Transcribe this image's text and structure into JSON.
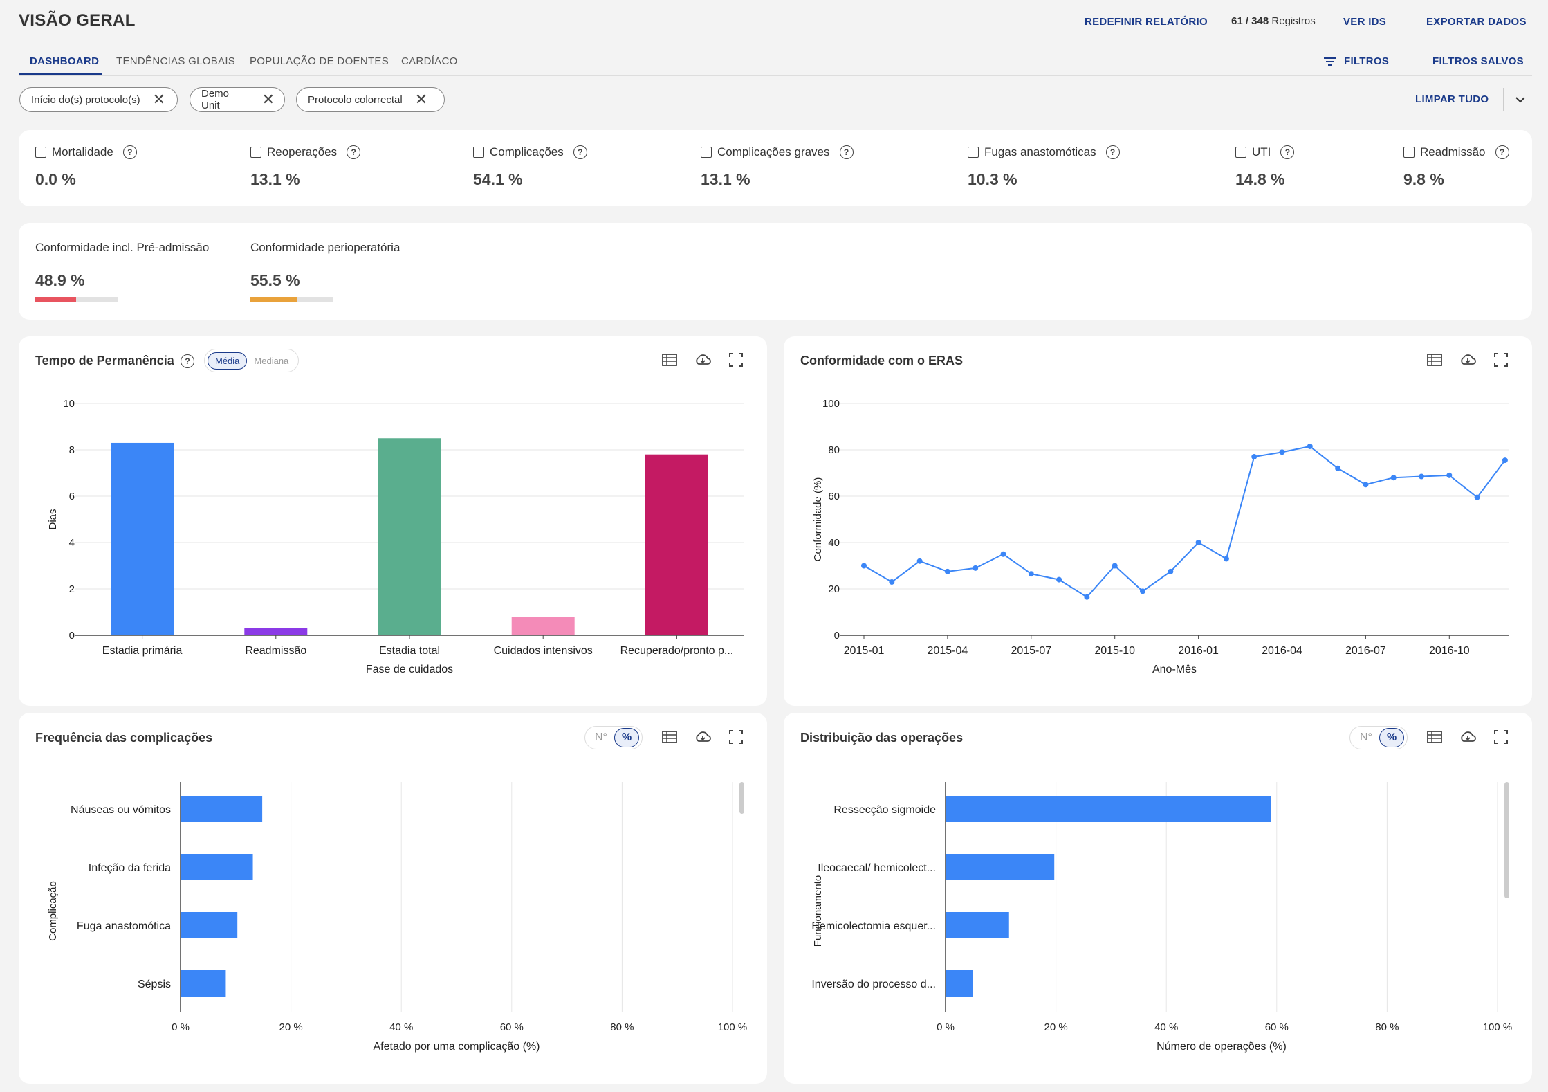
{
  "header": {
    "title": "VISÃO GERAL",
    "reset_report": "REDEFINIR RELATÓRIO",
    "records_count": "61 / 348",
    "records_label": "Registros",
    "view_ids": "VER IDS",
    "export": "EXPORTAR DADOS"
  },
  "tabs": [
    {
      "label": "DASHBOARD"
    },
    {
      "label": "TENDÊNCIAS GLOBAIS"
    },
    {
      "label": "POPULAÇÃO DE DOENTES"
    },
    {
      "label": "CARDÍACO"
    }
  ],
  "toolbar": {
    "filters": "FILTROS",
    "saved_filters": "FILTROS SALVOS",
    "clear_all": "LIMPAR TUDO"
  },
  "chips": [
    {
      "label": "Início do(s) protocolo(s)"
    },
    {
      "label": "Demo Unit"
    },
    {
      "label": "Protocolo colorrectal"
    }
  ],
  "kpis": [
    {
      "label": "Mortalidade",
      "value": "0.0 %"
    },
    {
      "label": "Reoperações",
      "value": "13.1 %"
    },
    {
      "label": "Complicações",
      "value": "54.1 %"
    },
    {
      "label": "Complicações graves",
      "value": "13.1 %"
    },
    {
      "label": "Fugas anastomóticas",
      "value": "10.3 %"
    },
    {
      "label": "UTI",
      "value": "14.8 %"
    },
    {
      "label": "Readmissão",
      "value": "9.8 %"
    }
  ],
  "compliance": [
    {
      "label": "Conformidade incl. Pré-admissão",
      "value": "48.9 %",
      "fraction": 0.489,
      "color": "#e8545f"
    },
    {
      "label": "Conformidade perioperatória",
      "value": "55.5 %",
      "fraction": 0.555,
      "color": "#e9a23b"
    }
  ],
  "panels": {
    "los": {
      "title": "Tempo de Permanência",
      "toggle_a": "Média",
      "toggle_b": "Mediana"
    },
    "eras": {
      "title": "Conformidade com o ERAS"
    },
    "freq": {
      "title": "Frequência das complicações",
      "toggle_a": "N°",
      "toggle_b": "%"
    },
    "ops": {
      "title": "Distribuição das operações",
      "toggle_a": "N°",
      "toggle_b": "%"
    }
  },
  "chart_data": [
    {
      "id": "los",
      "type": "bar",
      "title": "Tempo de Permanência",
      "categories": [
        "Estadia primária",
        "Readmissão",
        "Estadia total",
        "Cuidados intensivos",
        "Recuperado/pronto p..."
      ],
      "values": [
        8.3,
        0.3,
        8.5,
        0.8,
        7.8
      ],
      "colors": [
        "#3b86f7",
        "#8b3ae6",
        "#5aae8e",
        "#f48bb8",
        "#c41a63"
      ],
      "xlabel": "Fase de cuidados",
      "ylabel": "Dias",
      "ylim": [
        0,
        10
      ],
      "yticks": [
        "0",
        "2",
        "4",
        "6",
        "8",
        "10"
      ]
    },
    {
      "id": "eras",
      "type": "line",
      "title": "Conformidade com o ERAS",
      "x": [
        "2015-01",
        "2015-02",
        "2015-03",
        "2015-04",
        "2015-05",
        "2015-06",
        "2015-07",
        "2015-08",
        "2015-09",
        "2015-10",
        "2015-11",
        "2015-12",
        "2016-01",
        "2016-02",
        "2016-03",
        "2016-04",
        "2016-05",
        "2016-06",
        "2016-07",
        "2016-08",
        "2016-09",
        "2016-10",
        "2016-11",
        "2016-12"
      ],
      "values": [
        30,
        23,
        32,
        27.5,
        29,
        35,
        26.5,
        24,
        16.5,
        30,
        19,
        27.5,
        40,
        33,
        77,
        79,
        81.5,
        72,
        65,
        68,
        68.5,
        69,
        59.5,
        75.5
      ],
      "xticks": [
        "2015-01",
        "2015-04",
        "2015-07",
        "2015-10",
        "2016-01",
        "2016-04",
        "2016-07",
        "2016-10"
      ],
      "xlabel": "Ano-Mês",
      "ylabel": "Conformidade (%)",
      "ylim": [
        0,
        100
      ],
      "yticks": [
        "0",
        "20",
        "40",
        "60",
        "80",
        "100"
      ],
      "color": "#3b86f7"
    },
    {
      "id": "freq",
      "type": "bar",
      "orientation": "horizontal",
      "title": "Frequência das complicações",
      "categories": [
        "Náuseas ou vómitos",
        "Infeção da ferida",
        "Fuga anastomótica",
        "Sépsis"
      ],
      "values": [
        14.8,
        13.1,
        10.3,
        8.2
      ],
      "xlabel": "Afetado por uma complicação (%)",
      "ylabel": "Complicação",
      "xlim": [
        0,
        100
      ],
      "xticks": [
        "0 %",
        "20 %",
        "40 %",
        "60 %",
        "80 %",
        "100 %"
      ],
      "color": "#3b86f7"
    },
    {
      "id": "ops",
      "type": "bar",
      "orientation": "horizontal",
      "title": "Distribuição das operações",
      "categories": [
        "Ressecção sigmoide",
        "Ileocaecal/ hemicolect...",
        "Hemicolectomia esquer...",
        "Inversão do processo d..."
      ],
      "values": [
        59,
        19.7,
        11.5,
        4.9
      ],
      "xlabel": "Número de operações (%)",
      "ylabel": "Funcionamento",
      "xlim": [
        0,
        100
      ],
      "xticks": [
        "0 %",
        "20 %",
        "40 %",
        "60 %",
        "80 %",
        "100 %"
      ],
      "color": "#3b86f7"
    }
  ]
}
